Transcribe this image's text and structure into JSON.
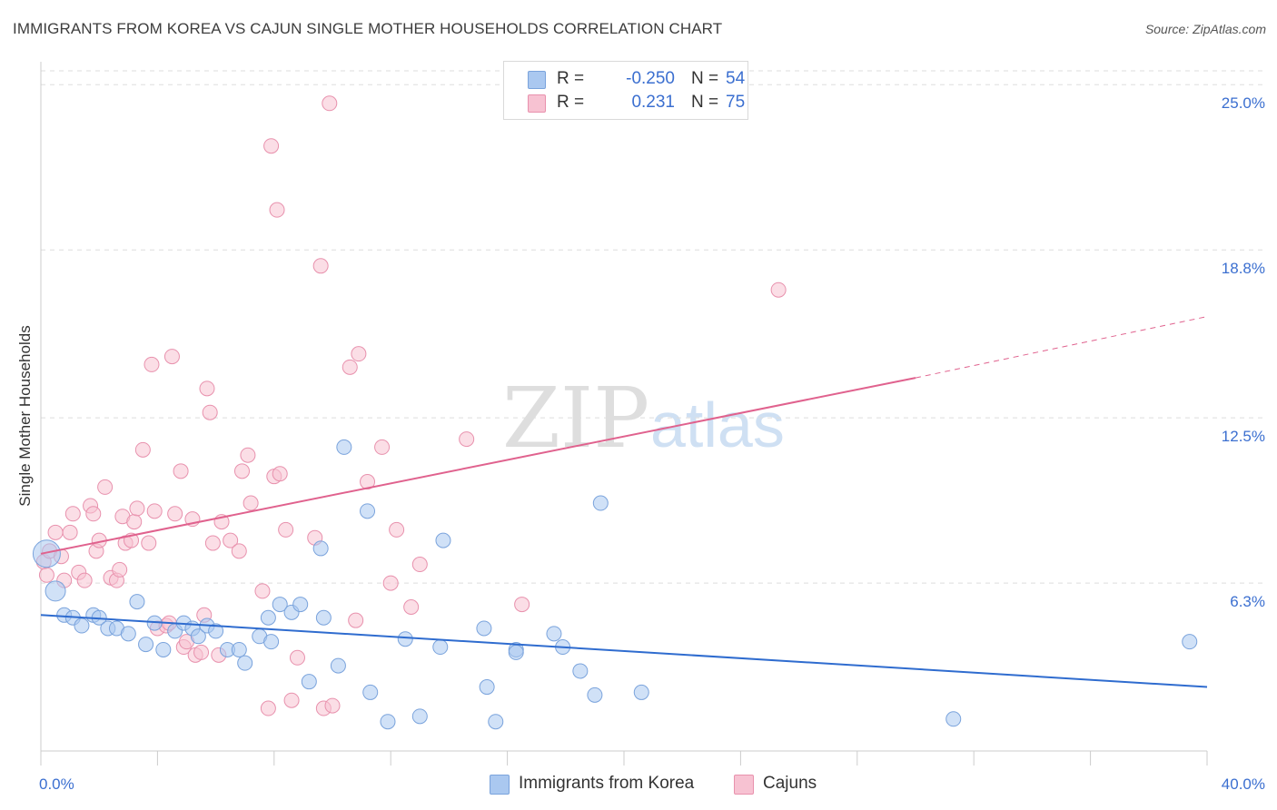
{
  "title": "IMMIGRANTS FROM KOREA VS CAJUN SINGLE MOTHER HOUSEHOLDS CORRELATION CHART",
  "source": "Source: ZipAtlas.com",
  "watermark": {
    "zip": "ZIP",
    "atlas": "atlas"
  },
  "legend": {
    "korea": {
      "r_label": "R =",
      "r_value": "-0.250",
      "n_label": "N =",
      "n_value": "54"
    },
    "cajun": {
      "r_label": "R =",
      "r_value": "0.231",
      "n_label": "N =",
      "n_value": "75"
    }
  },
  "colors": {
    "korea_fill": "#aac8f0",
    "korea_stroke": "#7aa3dc",
    "korea_line": "#2f6ccf",
    "cajun_fill": "#f7c2d2",
    "cajun_stroke": "#e891ad",
    "cajun_line": "#e0628e",
    "tick_label": "#3b6fd0",
    "grid": "#dddddd"
  },
  "chart_data": {
    "type": "scatter",
    "title": "IMMIGRANTS FROM KOREA VS CAJUN SINGLE MOTHER HOUSEHOLDS CORRELATION CHART",
    "xlabel": "",
    "ylabel": "Single Mother Households",
    "xlim": [
      0,
      40
    ],
    "ylim": [
      0,
      26.2
    ],
    "x_tick_labels": [
      "0.0%",
      "40.0%"
    ],
    "y_ticks": [
      6.3,
      12.5,
      18.8,
      25.0
    ],
    "y_tick_labels": [
      "6.3%",
      "12.5%",
      "18.8%",
      "25.0%"
    ],
    "grid": "horizontal dashed",
    "legend_position": "top-center and bottom",
    "series": [
      {
        "name": "Immigrants from Korea",
        "r": -0.25,
        "n": 54,
        "trend": {
          "x": [
            0,
            40
          ],
          "y": [
            5.1,
            2.4
          ]
        },
        "points": [
          [
            0.2,
            7.4
          ],
          [
            0.5,
            6.0
          ],
          [
            0.8,
            5.1
          ],
          [
            1.1,
            5.0
          ],
          [
            1.4,
            4.7
          ],
          [
            1.8,
            5.1
          ],
          [
            2.0,
            5.0
          ],
          [
            2.3,
            4.6
          ],
          [
            2.6,
            4.6
          ],
          [
            3.0,
            4.4
          ],
          [
            3.3,
            5.6
          ],
          [
            3.6,
            4.0
          ],
          [
            3.9,
            4.8
          ],
          [
            4.2,
            3.8
          ],
          [
            4.6,
            4.5
          ],
          [
            4.9,
            4.8
          ],
          [
            5.2,
            4.6
          ],
          [
            5.4,
            4.3
          ],
          [
            5.7,
            4.7
          ],
          [
            6.0,
            4.5
          ],
          [
            6.4,
            3.8
          ],
          [
            6.8,
            3.8
          ],
          [
            7.0,
            3.3
          ],
          [
            7.5,
            4.3
          ],
          [
            7.8,
            5.0
          ],
          [
            7.9,
            4.1
          ],
          [
            8.2,
            5.5
          ],
          [
            8.6,
            5.2
          ],
          [
            8.9,
            5.5
          ],
          [
            9.2,
            2.6
          ],
          [
            9.6,
            7.6
          ],
          [
            9.7,
            5.0
          ],
          [
            10.2,
            3.2
          ],
          [
            10.4,
            11.4
          ],
          [
            11.2,
            9.0
          ],
          [
            11.3,
            2.2
          ],
          [
            11.9,
            1.1
          ],
          [
            12.5,
            4.2
          ],
          [
            13.0,
            1.3
          ],
          [
            13.7,
            3.9
          ],
          [
            13.8,
            7.9
          ],
          [
            15.2,
            4.6
          ],
          [
            15.3,
            2.4
          ],
          [
            15.6,
            1.1
          ],
          [
            16.3,
            3.8
          ],
          [
            16.3,
            3.7
          ],
          [
            17.6,
            4.4
          ],
          [
            17.9,
            3.9
          ],
          [
            18.5,
            3.0
          ],
          [
            19.0,
            2.1
          ],
          [
            19.2,
            9.3
          ],
          [
            20.6,
            2.2
          ],
          [
            31.3,
            1.2
          ],
          [
            39.4,
            4.1
          ]
        ]
      },
      {
        "name": "Cajuns",
        "r": 0.231,
        "n": 75,
        "trend": {
          "x": [
            0,
            30
          ],
          "y": [
            7.4,
            14.0
          ]
        },
        "trend_dashed": {
          "x": [
            30,
            40
          ],
          "y": [
            14.0,
            16.3
          ]
        },
        "points": [
          [
            0.1,
            7.1
          ],
          [
            0.2,
            6.6
          ],
          [
            0.3,
            7.5
          ],
          [
            0.5,
            8.2
          ],
          [
            0.7,
            7.3
          ],
          [
            0.8,
            6.4
          ],
          [
            1.0,
            8.2
          ],
          [
            1.1,
            8.9
          ],
          [
            1.3,
            6.7
          ],
          [
            1.5,
            6.4
          ],
          [
            1.7,
            9.2
          ],
          [
            1.8,
            8.9
          ],
          [
            1.9,
            7.5
          ],
          [
            2.0,
            7.9
          ],
          [
            2.2,
            9.9
          ],
          [
            2.4,
            6.5
          ],
          [
            2.6,
            6.4
          ],
          [
            2.7,
            6.8
          ],
          [
            2.8,
            8.8
          ],
          [
            2.9,
            7.8
          ],
          [
            3.1,
            7.9
          ],
          [
            3.2,
            8.6
          ],
          [
            3.3,
            9.1
          ],
          [
            3.5,
            11.3
          ],
          [
            3.7,
            7.8
          ],
          [
            3.8,
            14.5
          ],
          [
            3.9,
            9.0
          ],
          [
            4.0,
            4.6
          ],
          [
            4.3,
            4.7
          ],
          [
            4.4,
            4.8
          ],
          [
            4.5,
            14.8
          ],
          [
            4.6,
            8.9
          ],
          [
            4.8,
            10.5
          ],
          [
            4.9,
            3.9
          ],
          [
            5.0,
            4.1
          ],
          [
            5.2,
            8.7
          ],
          [
            5.3,
            3.6
          ],
          [
            5.5,
            3.7
          ],
          [
            5.6,
            5.1
          ],
          [
            5.7,
            13.6
          ],
          [
            5.8,
            12.7
          ],
          [
            5.9,
            7.8
          ],
          [
            6.1,
            3.6
          ],
          [
            6.2,
            8.6
          ],
          [
            6.5,
            7.9
          ],
          [
            6.8,
            7.5
          ],
          [
            6.9,
            10.5
          ],
          [
            7.1,
            11.1
          ],
          [
            7.2,
            9.3
          ],
          [
            7.6,
            6.0
          ],
          [
            7.8,
            1.6
          ],
          [
            7.9,
            22.7
          ],
          [
            8.0,
            10.3
          ],
          [
            8.1,
            20.3
          ],
          [
            8.2,
            10.4
          ],
          [
            8.4,
            8.3
          ],
          [
            8.6,
            1.9
          ],
          [
            8.8,
            3.5
          ],
          [
            9.4,
            8.0
          ],
          [
            9.6,
            18.2
          ],
          [
            9.7,
            1.6
          ],
          [
            9.9,
            24.3
          ],
          [
            10.0,
            1.7
          ],
          [
            10.6,
            14.4
          ],
          [
            10.8,
            4.9
          ],
          [
            10.9,
            14.9
          ],
          [
            11.2,
            10.1
          ],
          [
            11.7,
            11.4
          ],
          [
            12.0,
            6.3
          ],
          [
            12.2,
            8.3
          ],
          [
            12.7,
            5.4
          ],
          [
            13.0,
            7.0
          ],
          [
            14.6,
            11.7
          ],
          [
            16.5,
            5.5
          ],
          [
            25.3,
            17.3
          ]
        ]
      }
    ]
  }
}
